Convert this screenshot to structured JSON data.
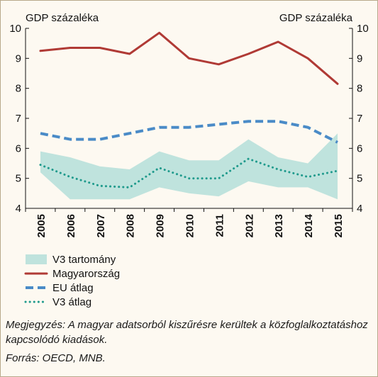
{
  "chart_data": {
    "type": "line",
    "ylabel_left": "GDP százaléka",
    "ylabel_right": "GDP százaléka",
    "ylim": [
      4,
      10
    ],
    "y_ticks": [
      4,
      5,
      6,
      7,
      8,
      9,
      10
    ],
    "grid": false,
    "legend_position": "bottom-left",
    "categories": [
      "2005",
      "2006",
      "2007",
      "2008",
      "2009",
      "2010",
      "2011",
      "2012",
      "2013",
      "2014",
      "2015"
    ],
    "band": {
      "name": "V3 tartomány",
      "color": "#bfe3dd",
      "lower": [
        5.2,
        4.3,
        4.3,
        4.3,
        4.7,
        4.5,
        4.4,
        4.9,
        4.7,
        4.7,
        4.3
      ],
      "upper": [
        5.9,
        5.7,
        5.4,
        5.3,
        5.9,
        5.6,
        5.6,
        6.3,
        5.7,
        5.5,
        6.5
      ]
    },
    "series": [
      {
        "name": "Magyarország",
        "color": "#b03a35",
        "style": "solid",
        "values": [
          9.25,
          9.35,
          9.35,
          9.15,
          9.85,
          9.0,
          8.8,
          9.15,
          9.55,
          9.0,
          8.15
        ]
      },
      {
        "name": "EU átlag",
        "color": "#4a8bc7",
        "style": "dashed",
        "values": [
          6.5,
          6.3,
          6.3,
          6.5,
          6.7,
          6.7,
          6.8,
          6.9,
          6.9,
          6.7,
          6.2
        ]
      },
      {
        "name": "V3 átlag",
        "color": "#1f9a8c",
        "style": "dotted",
        "values": [
          5.45,
          5.05,
          4.75,
          4.7,
          5.35,
          5.0,
          5.0,
          5.65,
          5.3,
          5.05,
          5.25
        ]
      }
    ]
  },
  "notes": {
    "megjegyzes": "Megjegyzés: A magyar adatsorból kiszűrésre kerültek a közfoglalkoztatáshoz kapcsolódó kiadások.",
    "forras": "Forrás: OECD, MNB."
  }
}
